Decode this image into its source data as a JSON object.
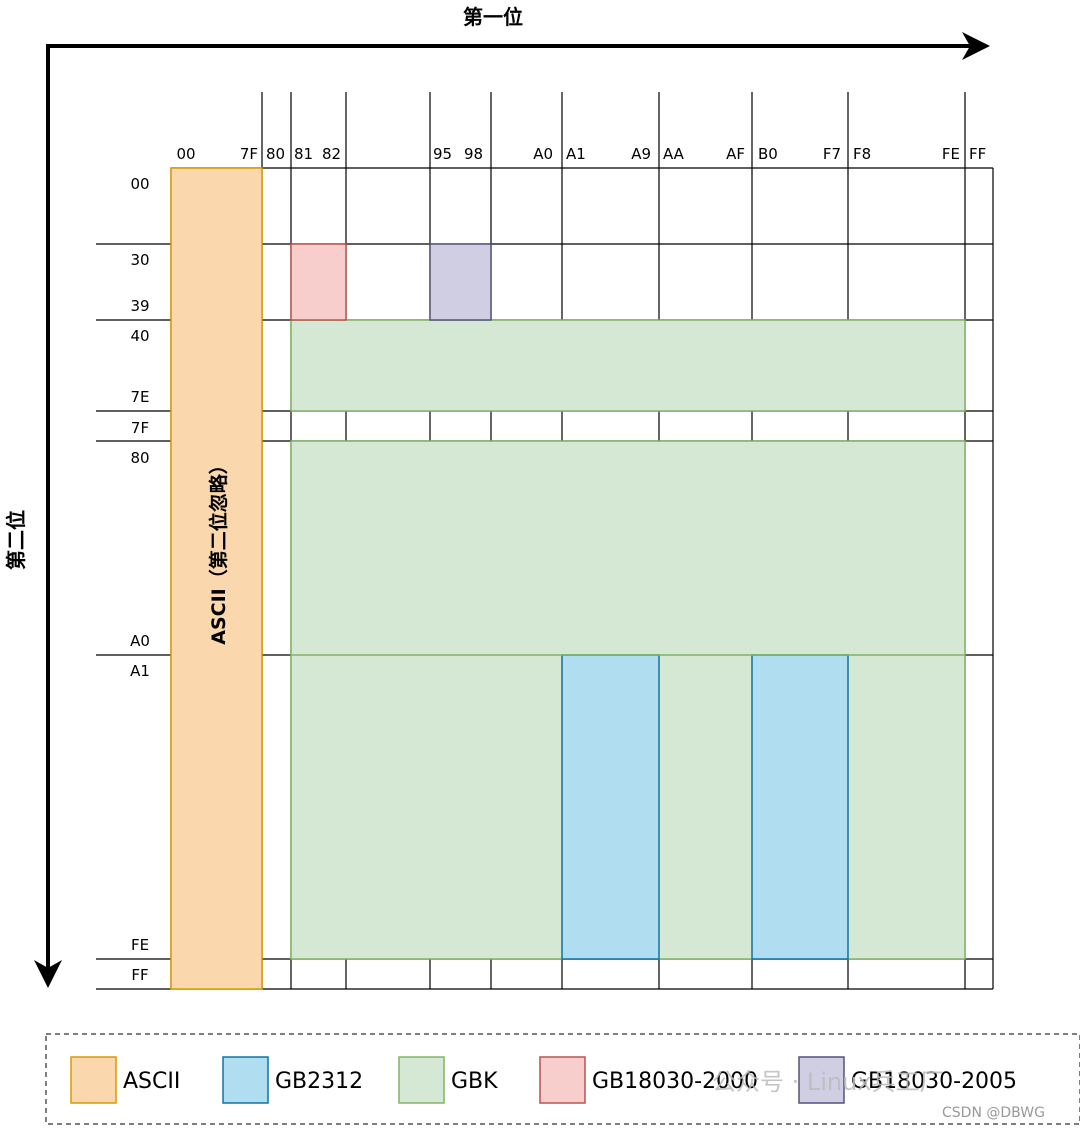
{
  "axes": {
    "x_title": "第一位",
    "y_title": "第二位"
  },
  "x_ticks": [
    {
      "label": "00",
      "at": "00"
    },
    {
      "label": "7F",
      "at": "7F"
    },
    {
      "label": "80",
      "at": "80"
    },
    {
      "label": "81",
      "at": "81"
    },
    {
      "label": "82",
      "at": "82"
    },
    {
      "label": "95",
      "at": "95"
    },
    {
      "label": "98",
      "at": "98"
    },
    {
      "label": "A0",
      "at": "A0"
    },
    {
      "label": "A1",
      "at": "A1"
    },
    {
      "label": "A9",
      "at": "A9"
    },
    {
      "label": "AA",
      "at": "AA"
    },
    {
      "label": "AF",
      "at": "AF"
    },
    {
      "label": "B0",
      "at": "B0"
    },
    {
      "label": "F7",
      "at": "F7"
    },
    {
      "label": "F8",
      "at": "F8"
    },
    {
      "label": "FE",
      "at": "FE"
    },
    {
      "label": "FF",
      "at": "FF"
    }
  ],
  "y_ticks": [
    {
      "label": "00"
    },
    {
      "label": "30"
    },
    {
      "label": "39"
    },
    {
      "label": "40"
    },
    {
      "label": "7E"
    },
    {
      "label": "7F"
    },
    {
      "label": "80"
    },
    {
      "label": "A0"
    },
    {
      "label": "A1"
    },
    {
      "label": "FE"
    },
    {
      "label": "FF"
    }
  ],
  "regions": [
    {
      "name": "ascii-region",
      "encoding": "ASCII",
      "first_byte": [
        "00",
        "7F"
      ],
      "second_byte": [
        "00",
        "FF"
      ],
      "label": "ASCII（第二位忽略）"
    },
    {
      "name": "gbk-region-40-7e",
      "encoding": "GBK",
      "first_byte": [
        "81",
        "FE"
      ],
      "second_byte": [
        "40",
        "7E"
      ]
    },
    {
      "name": "gbk-region-80-fe",
      "encoding": "GBK",
      "first_byte": [
        "81",
        "FE"
      ],
      "second_byte": [
        "80",
        "FE"
      ]
    },
    {
      "name": "gb2312-region-a1-a9",
      "encoding": "GB2312",
      "first_byte": [
        "A1",
        "A9"
      ],
      "second_byte": [
        "A1",
        "FE"
      ]
    },
    {
      "name": "gb2312-region-b0-f7",
      "encoding": "GB2312",
      "first_byte": [
        "B0",
        "F7"
      ],
      "second_byte": [
        "A1",
        "FE"
      ]
    },
    {
      "name": "gb18030-2000-region",
      "encoding": "GB18030-2000",
      "first_byte": [
        "81",
        "82"
      ],
      "second_byte": [
        "30",
        "39"
      ]
    },
    {
      "name": "gb18030-2005-region",
      "encoding": "GB18030-2005",
      "first_byte": [
        "95",
        "98"
      ],
      "second_byte": [
        "30",
        "39"
      ]
    }
  ],
  "legend": [
    {
      "name": "ASCII",
      "fill": "#fad7ac",
      "stroke": "#d79b00"
    },
    {
      "name": "GB2312",
      "fill": "#b1ddf0",
      "stroke": "#10739e"
    },
    {
      "name": "GBK",
      "fill": "#d5e8d4",
      "stroke": "#82b366"
    },
    {
      "name": "GB18030-2000",
      "fill": "#f8cecc",
      "stroke": "#b85450"
    },
    {
      "name": "GB18030-2005",
      "fill": "#d0cee2",
      "stroke": "#56517e"
    }
  ],
  "watermark": {
    "text": "公众号 · Linux兵工厂",
    "credit": "CSDN @DBWG"
  }
}
